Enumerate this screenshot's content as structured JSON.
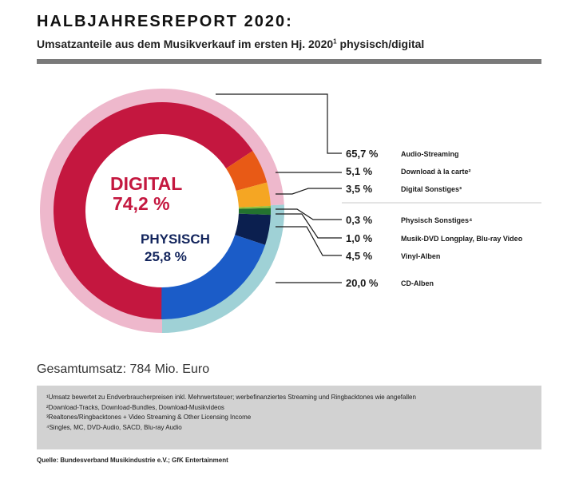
{
  "header": {
    "title": "HALBJAHRESREPORT 2020:",
    "subtitle": "Umsatzanteile aus dem Musikverkauf im ersten Hj. 2020",
    "subtitle_sup": "1",
    "subtitle_end": " physisch/digital"
  },
  "chart_data": {
    "type": "pie",
    "subtype": "nested-donut",
    "inner_labels": [
      {
        "name": "DIGITAL",
        "value": "74,2 %",
        "color": "#c4173f"
      },
      {
        "name": "PHYSISCH",
        "value": "25,8 %",
        "color": "#12245c"
      }
    ],
    "outer_ring": [
      {
        "name": "Digital",
        "value": 74.2,
        "color": "#eeb8cc"
      },
      {
        "name": "Physisch",
        "value": 25.8,
        "color": "#9fd1d6"
      }
    ],
    "segments": [
      {
        "label": "Audio-Streaming",
        "value": 65.7,
        "display": "65,7 %",
        "color": "#c4173f"
      },
      {
        "label": "Download à la carte²",
        "value": 5.1,
        "display": "5,1 %",
        "color": "#e85a16"
      },
      {
        "label": "Digital Sonstiges³",
        "value": 3.5,
        "display": "3,5 %",
        "color": "#f5a623"
      },
      {
        "label": "Physisch Sonstiges⁴",
        "value": 0.3,
        "display": "0,3 %",
        "color": "#8fbf3a"
      },
      {
        "label": "Musik-DVD Longplay, Blu-ray Video",
        "value": 1.0,
        "display": "1,0 %",
        "color": "#23722f"
      },
      {
        "label": "Vinyl-Alben",
        "value": 4.5,
        "display": "4,5 %",
        "color": "#0b1f4f"
      },
      {
        "label": "CD-Alben",
        "value": 20.0,
        "display": "20,0 %",
        "color": "#1b5cc8"
      }
    ]
  },
  "total": "Gesamtumsatz: 784 Mio. Euro",
  "notes": [
    "¹Umsatz bewertet zu Endverbraucherpreisen inkl. Mehrwertsteuer; werbefinanziertes Streaming und Ringbacktones wie angefallen",
    "²Download-Tracks, Download-Bundles, Download-Musikvideos",
    "³Realtones/Ringbacktones + Video Streaming & Other Licensing Income",
    "⁴Singles, MC, DVD-Audio, SACD, Blu-ray Audio"
  ],
  "source": "Quelle: Bundesverband Musikindustrie e.V.; GfK Entertainment"
}
